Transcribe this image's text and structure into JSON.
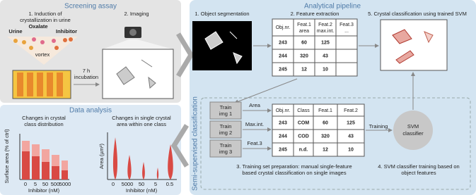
{
  "screening": {
    "title": "Screening assay",
    "step1": [
      "1. Induction of",
      "crystallization in urine"
    ],
    "urine": "Urine",
    "oxalate": "Oxalate",
    "inhibitor": "Inhibitor",
    "vortex": "vortex",
    "incubation": [
      "7 h",
      "incubation"
    ],
    "step2": "2. Imaging"
  },
  "analysis": {
    "title": "Data analysis",
    "plot1": {
      "title": [
        "Changes in crystal",
        "class distribution"
      ],
      "ylabel": "Surface area (% of ctrl)",
      "xticks": [
        "0",
        "5",
        "50",
        "500",
        "5000"
      ],
      "xlabel": "Inhibitor (nM)"
    },
    "plot2": {
      "title": [
        "Changes in single crystal",
        "area within one class"
      ],
      "ylabel": "Area (µm²)",
      "xticks": [
        "0",
        "5000",
        "50",
        "5",
        "0.5"
      ],
      "xlabel": "Inhibitor (nM)"
    }
  },
  "pipeline": {
    "title": "Analytical pipeline",
    "step1": "1. Object segmentation",
    "step2": "2. Feature extraction",
    "step5": "5. Crystal classification using trained SVM",
    "features_table": {
      "header": [
        [
          "Obj.nr."
        ],
        [
          "Feat.1",
          "area"
        ],
        [
          "Feat.2",
          "max.int."
        ],
        [
          "Feat.3",
          "..."
        ]
      ],
      "rows": [
        [
          "243",
          "60",
          "125"
        ],
        [
          "244",
          "320",
          "43"
        ],
        [
          "245",
          "12",
          "10"
        ]
      ]
    }
  },
  "semi": {
    "title": "Semi-supervised classification",
    "train_images": [
      [
        "Train",
        "img 1"
      ],
      [
        "Train",
        "img 2"
      ],
      [
        "Train",
        "img 3"
      ]
    ],
    "features": [
      "Area",
      "Max.int.",
      "Feat.3"
    ],
    "class_table": {
      "header": [
        "Obj.nr.",
        "Class",
        "Feat.1",
        "Feat.2"
      ],
      "rows": [
        [
          "243",
          "COM",
          "60",
          "125"
        ],
        [
          "244",
          "COD",
          "320",
          "43"
        ],
        [
          "245",
          "n.d.",
          "12",
          "10"
        ]
      ]
    },
    "training": "Training",
    "svm": [
      "SVM",
      "classifier"
    ],
    "step3": [
      "3. Training set preparation: manual single-feature",
      "based crystal classification on single images"
    ],
    "step4": [
      "4. SVM classifier training based on",
      "object features"
    ]
  }
}
